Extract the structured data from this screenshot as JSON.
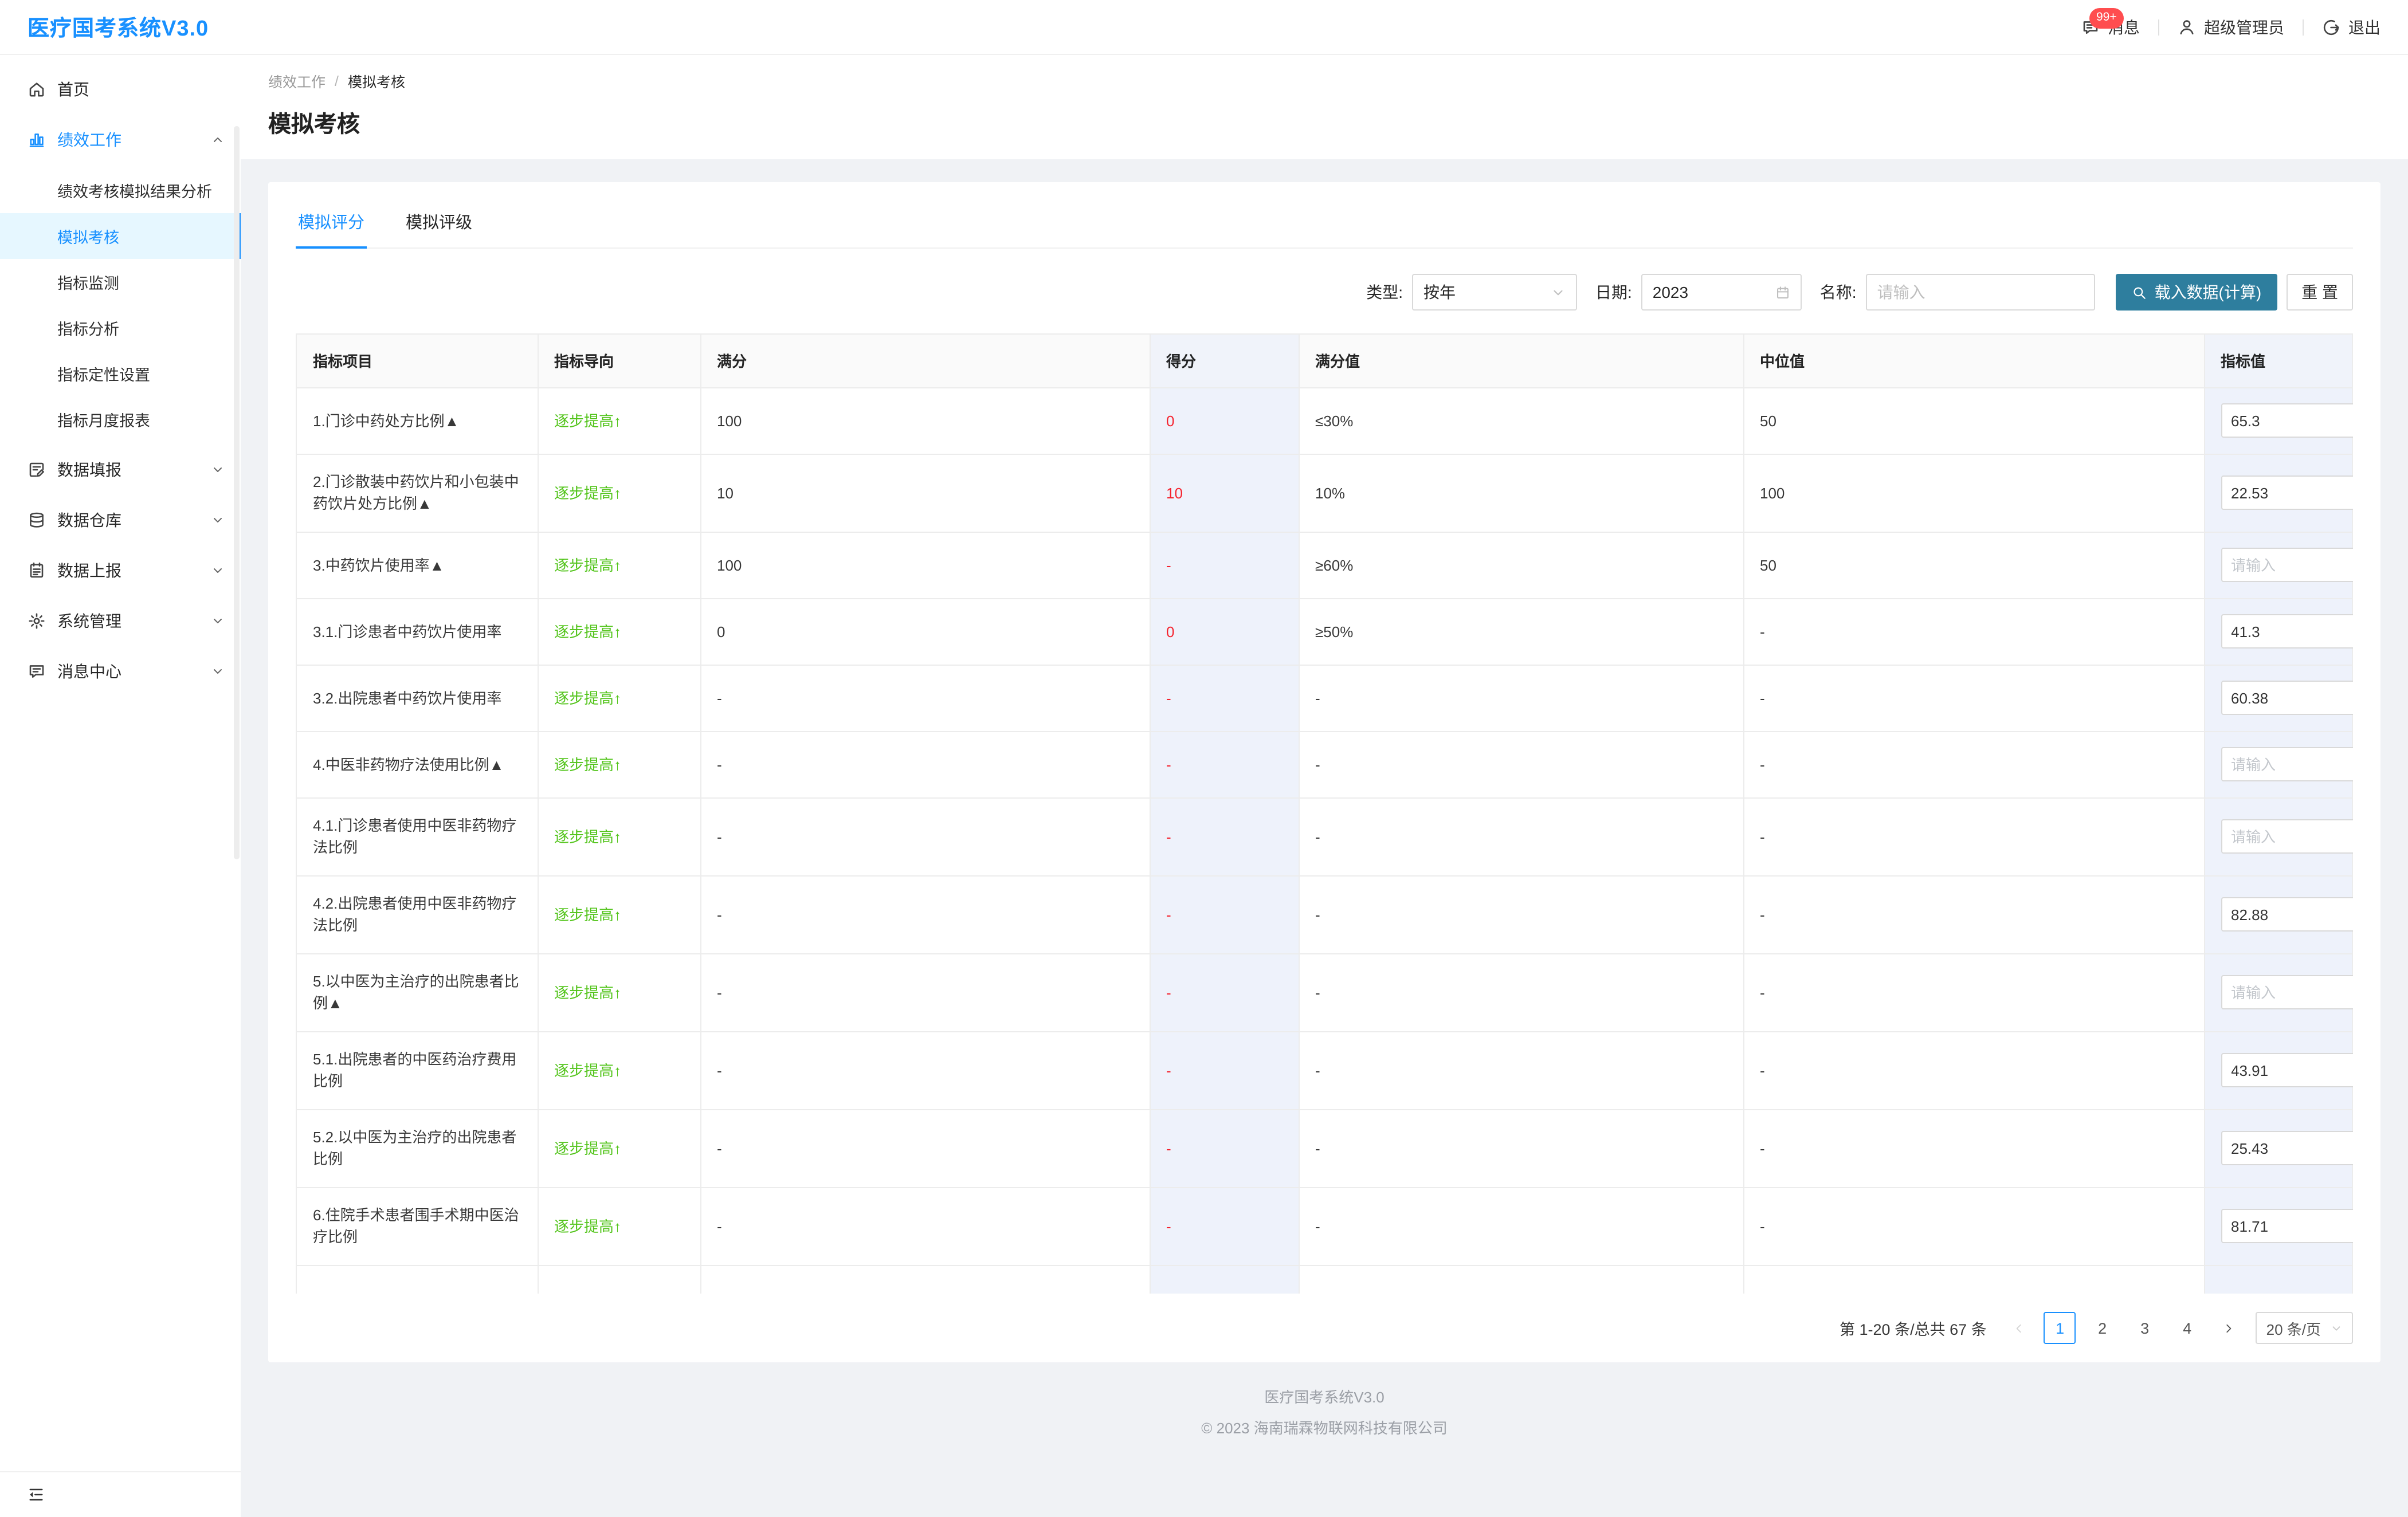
{
  "header": {
    "logo": "医疗国考系统V3.0",
    "badge": "99+",
    "messages_label": "消息",
    "user_label": "超级管理员",
    "logout_label": "退出"
  },
  "sidebar": {
    "items": [
      {
        "label": "首页",
        "icon": "home"
      },
      {
        "label": "绩效工作",
        "icon": "chart",
        "expanded": true,
        "children": [
          "绩效考核模拟结果分析",
          "模拟考核",
          "指标监测",
          "指标分析",
          "指标定性设置",
          "指标月度报表"
        ],
        "active_child_index": 1
      },
      {
        "label": "数据填报",
        "icon": "form",
        "collapsed": true
      },
      {
        "label": "数据仓库",
        "icon": "database",
        "collapsed": true
      },
      {
        "label": "数据上报",
        "icon": "report",
        "collapsed": true
      },
      {
        "label": "系统管理",
        "icon": "gear",
        "collapsed": true
      },
      {
        "label": "消息中心",
        "icon": "message",
        "collapsed": true
      }
    ]
  },
  "breadcrumb": {
    "parent": "绩效工作",
    "separator": "/",
    "current": "模拟考核"
  },
  "page_title": "模拟考核",
  "tabs": [
    {
      "label": "模拟评分",
      "active": true
    },
    {
      "label": "模拟评级",
      "active": false
    }
  ],
  "filters": {
    "type_label": "类型:",
    "type_value": "按年",
    "date_label": "日期:",
    "date_value": "2023",
    "name_label": "名称:",
    "name_placeholder": "请输入",
    "load_button": "载入数据(计算)",
    "reset_button": "重 置"
  },
  "table": {
    "columns": [
      "指标项目",
      "指标导向",
      "满分",
      "得分",
      "满分值",
      "中位值",
      "指标值"
    ],
    "input_placeholder": "请输入",
    "rows": [
      {
        "name": "1.门诊中药处方比例▲",
        "direction": "逐步提高↑",
        "full_score": "100",
        "score": "0",
        "full_value": "≤30%",
        "median": "50",
        "indicator": "65.3"
      },
      {
        "name": "2.门诊散装中药饮片和小包装中药饮片处方比例▲",
        "direction": "逐步提高↑",
        "full_score": "10",
        "score": "10",
        "full_value": "10%",
        "median": "100",
        "indicator": "22.53"
      },
      {
        "name": "3.中药饮片使用率▲",
        "direction": "逐步提高↑",
        "full_score": "100",
        "score": "-",
        "full_value": "≥60%",
        "median": "50",
        "indicator": ""
      },
      {
        "name": "3.1.门诊患者中药饮片使用率",
        "direction": "逐步提高↑",
        "full_score": "0",
        "score": "0",
        "full_value": "≥50%",
        "median": "-",
        "indicator": "41.3"
      },
      {
        "name": "3.2.出院患者中药饮片使用率",
        "direction": "逐步提高↑",
        "full_score": "-",
        "score": "-",
        "full_value": "-",
        "median": "-",
        "indicator": "60.38"
      },
      {
        "name": "4.中医非药物疗法使用比例▲",
        "direction": "逐步提高↑",
        "full_score": "-",
        "score": "-",
        "full_value": "-",
        "median": "-",
        "indicator": ""
      },
      {
        "name": "4.1.门诊患者使用中医非药物疗法比例",
        "direction": "逐步提高↑",
        "full_score": "-",
        "score": "-",
        "full_value": "-",
        "median": "-",
        "indicator": ""
      },
      {
        "name": "4.2.出院患者使用中医非药物疗法比例",
        "direction": "逐步提高↑",
        "full_score": "-",
        "score": "-",
        "full_value": "-",
        "median": "-",
        "indicator": "82.88"
      },
      {
        "name": "5.以中医为主治疗的出院患者比例▲",
        "direction": "逐步提高↑",
        "full_score": "-",
        "score": "-",
        "full_value": "-",
        "median": "-",
        "indicator": ""
      },
      {
        "name": "5.1.出院患者的中医药治疗费用比例",
        "direction": "逐步提高↑",
        "full_score": "-",
        "score": "-",
        "full_value": "-",
        "median": "-",
        "indicator": "43.91"
      },
      {
        "name": "5.2.以中医为主治疗的出院患者比例",
        "direction": "逐步提高↑",
        "full_score": "-",
        "score": "-",
        "full_value": "-",
        "median": "-",
        "indicator": "25.43"
      },
      {
        "name": "6.住院手术患者围手术期中医治疗比例",
        "direction": "逐步提高↑",
        "full_score": "-",
        "score": "-",
        "full_value": "-",
        "median": "-",
        "indicator": "81.71"
      }
    ]
  },
  "pagination": {
    "total_text": "第 1-20 条/总共 67 条",
    "pages": [
      "1",
      "2",
      "3",
      "4"
    ],
    "active_page": "1",
    "page_size": "20 条/页"
  },
  "footer": {
    "line1": "医疗国考系统V3.0",
    "line2": "© 2023 海南瑞霖物联网科技有限公司"
  },
  "colors": {
    "accent": "#1890ff",
    "primary_button": "#2e7e9e",
    "red": "#f5222d",
    "green": "#52c41a",
    "badge": "#ff4d4f",
    "col_highlight": "#eef2fb",
    "col_highlight_head": "#f0f3fa",
    "page_bg": "#f0f2f5"
  }
}
